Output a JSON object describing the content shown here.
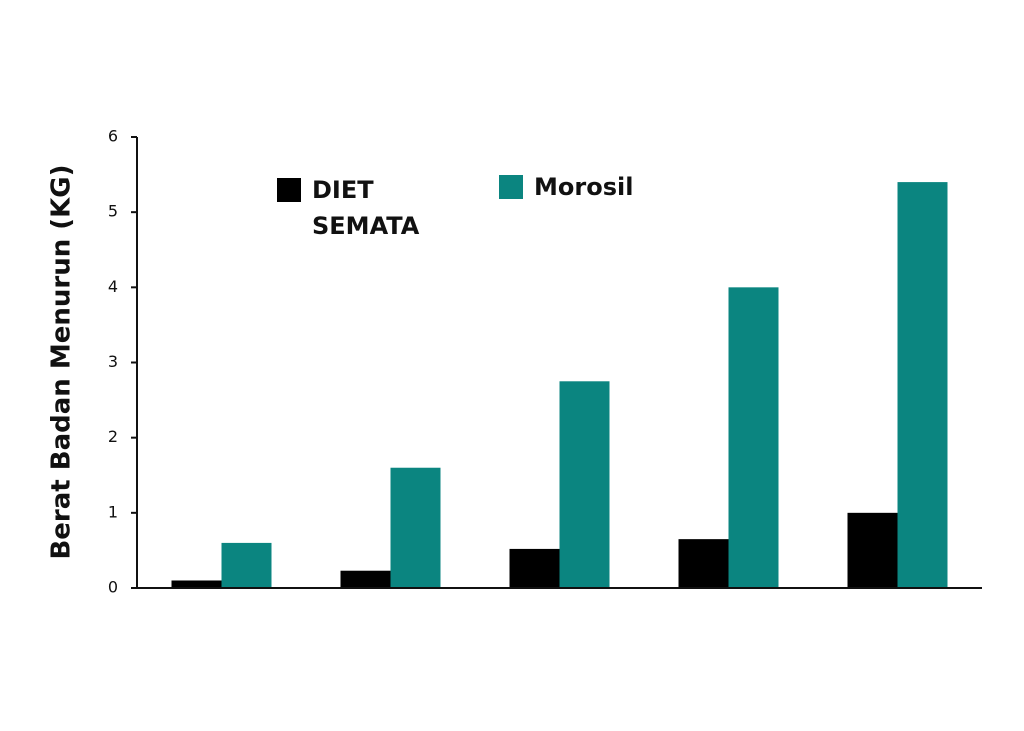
{
  "chart_data": {
    "type": "bar",
    "y_label": "Berat Badan Menurun (KG)",
    "series": [
      {
        "name": "DIET SEMATA",
        "color": "#000000",
        "values": [
          0.1,
          0.23,
          0.52,
          0.65,
          1.0
        ]
      },
      {
        "name": "Morosil",
        "color": "#0b8580",
        "values": [
          0.6,
          1.6,
          2.75,
          4.0,
          5.4
        ]
      }
    ],
    "ylim": [
      0,
      6
    ],
    "yticks": [
      0,
      1,
      2,
      3,
      4,
      5,
      6
    ]
  }
}
